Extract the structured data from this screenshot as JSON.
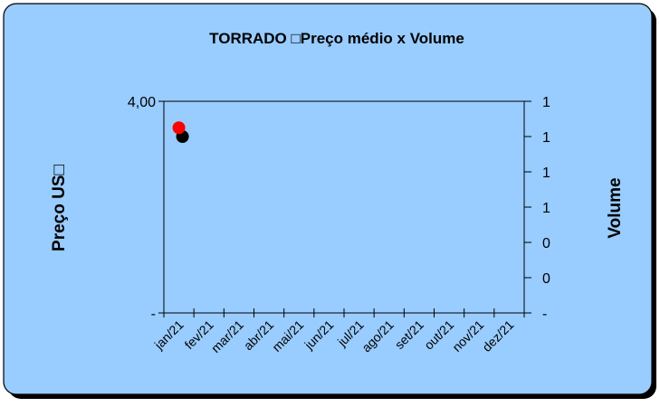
{
  "chart_data": {
    "type": "scatter",
    "title": "TORRADO □Preço médio x Volume",
    "ylabel": "Preço US□",
    "y2label": "Volume",
    "xlabel": "",
    "categories": [
      "jan/21",
      "fev/21",
      "mar/21",
      "abr/21",
      "mai/21",
      "jun/21",
      "jul/21",
      "ago/21",
      "set/21",
      "out/21",
      "nov/21",
      "dez/21"
    ],
    "y_ticks": [
      "4,00",
      "-"
    ],
    "y2_ticks": [
      "1",
      "1",
      "1",
      "1",
      "0",
      "0",
      "-"
    ],
    "ylim": [
      0,
      4
    ],
    "y2lim": [
      0,
      1.2
    ],
    "grid": false,
    "legend": "none",
    "series": [
      {
        "axis": "right",
        "color": "#000000",
        "points": [
          {
            "x": "jan/21",
            "y": 1.0
          }
        ]
      },
      {
        "axis": "left",
        "color": "#ff0000",
        "points": [
          {
            "x": "jan/21",
            "y": 3.5
          }
        ]
      }
    ],
    "colors": {
      "background": "#99ccff",
      "border": "#000000",
      "plot_area": "#99ccff"
    }
  }
}
